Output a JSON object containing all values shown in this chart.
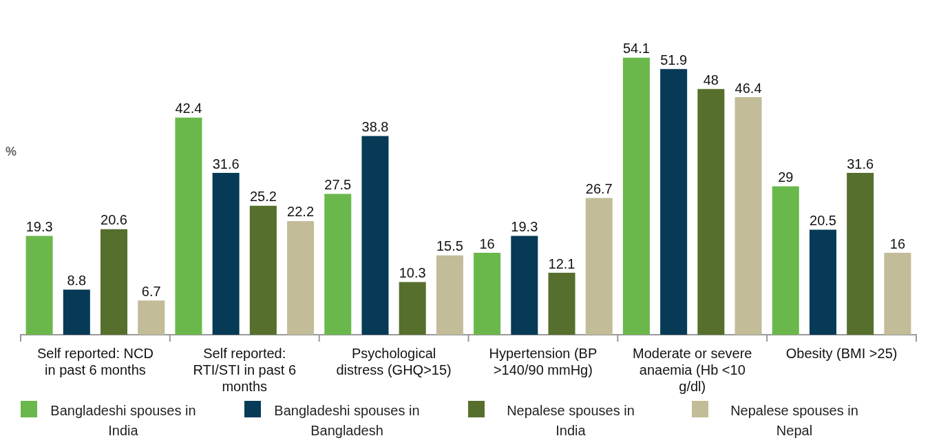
{
  "chart_data": {
    "type": "bar",
    "ylabel": "%",
    "categories": [
      "Self reported: NCD in past 6 months",
      "Self reported: RTI/STI in past 6 months",
      "Psychological distress (GHQ>15)",
      "Hypertension (BP >140/90 mmHg)",
      "Moderate or severe anaemia (Hb <10 g/dl)",
      "Obesity (BMI >25)"
    ],
    "series": [
      {
        "name": "Bangladeshi spouses in India",
        "color": "#6ab84c",
        "values": [
          19.3,
          42.4,
          27.5,
          16,
          54.1,
          29
        ]
      },
      {
        "name": "Bangladeshi spouses in Bangladesh",
        "color": "#063a56",
        "values": [
          8.8,
          31.6,
          38.8,
          19.3,
          51.9,
          20.5
        ]
      },
      {
        "name": "Nepalese spouses in India",
        "color": "#566f2c",
        "values": [
          20.6,
          25.2,
          10.3,
          12.1,
          48,
          31.6
        ]
      },
      {
        "name": "Nepalese spouses in Nepal",
        "color": "#c2bc98",
        "values": [
          6.7,
          22.2,
          15.5,
          26.7,
          46.4,
          16
        ]
      }
    ],
    "data_labels": true,
    "legend": "bottom",
    "grid": false
  }
}
